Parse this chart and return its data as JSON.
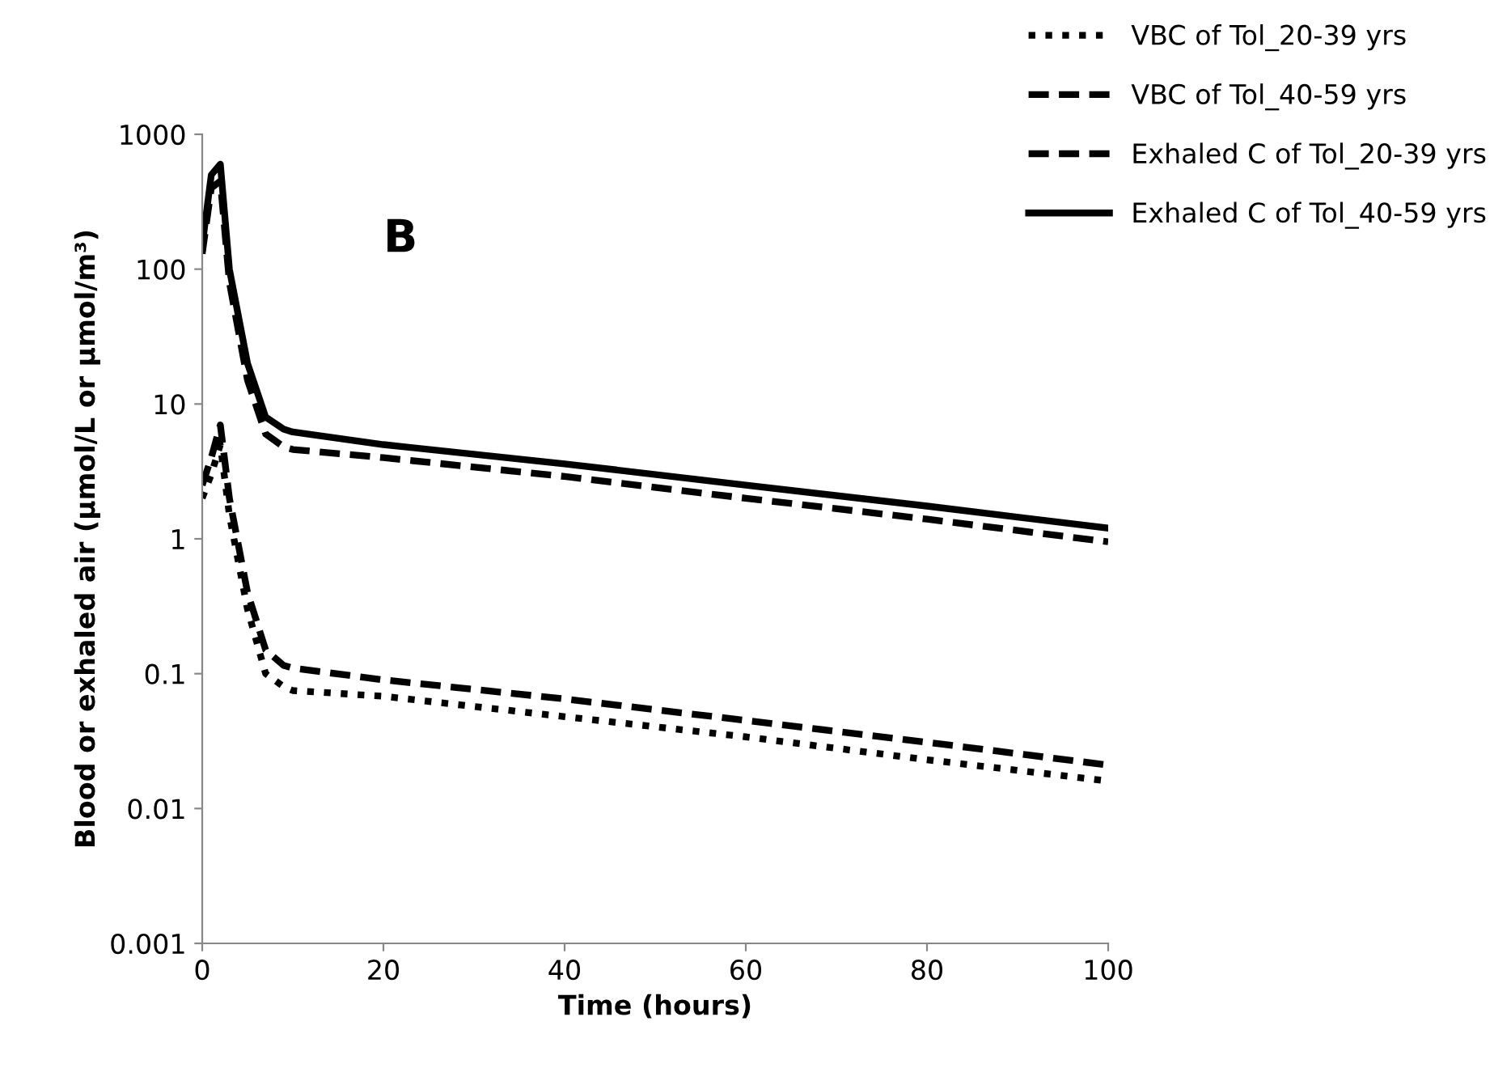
{
  "chart_data": {
    "type": "line",
    "xlabel": "Time (hours)",
    "ylabel": "Blood or exhaled air (µmol/L or µmol/m³)",
    "annotations": [
      "B"
    ],
    "x": [
      0,
      1,
      2,
      3,
      5,
      7,
      9,
      10,
      20,
      40,
      60,
      80,
      100
    ],
    "series": [
      {
        "name": "VBC of Tol_20-39 yrs",
        "color": "#000000",
        "line_style": "dotted",
        "values": [
          2,
          3,
          5,
          1.5,
          0.3,
          0.1,
          0.08,
          0.075,
          0.068,
          0.048,
          0.034,
          0.023,
          0.016
        ]
      },
      {
        "name": "VBC of Tol_40-59 yrs",
        "color": "#000000",
        "line_style": "dashed",
        "values": [
          2.5,
          4,
          7,
          2,
          0.4,
          0.15,
          0.115,
          0.11,
          0.09,
          0.065,
          0.045,
          0.031,
          0.021
        ]
      },
      {
        "name": "Exhaled C of Tol_20-39 yrs",
        "color": "#000000",
        "line_style": "dashed",
        "values": [
          130,
          400,
          450,
          80,
          15,
          6,
          4.8,
          4.6,
          4.0,
          2.9,
          2.0,
          1.4,
          0.95
        ]
      },
      {
        "name": "Exhaled C of Tol_40-59 yrs",
        "color": "#000000",
        "line_style": "solid",
        "values": [
          150,
          500,
          600,
          100,
          20,
          8,
          6.5,
          6.2,
          5.0,
          3.6,
          2.5,
          1.75,
          1.2
        ]
      }
    ],
    "log": "y",
    "xlim": [
      0,
      100
    ],
    "xticks": [
      0,
      20,
      40,
      60,
      80,
      100
    ],
    "ylim": [
      0.001,
      1000
    ],
    "yticks": [
      0.001,
      0.01,
      0.1,
      1,
      10,
      100,
      1000
    ],
    "grid": false,
    "legend": "top right"
  }
}
